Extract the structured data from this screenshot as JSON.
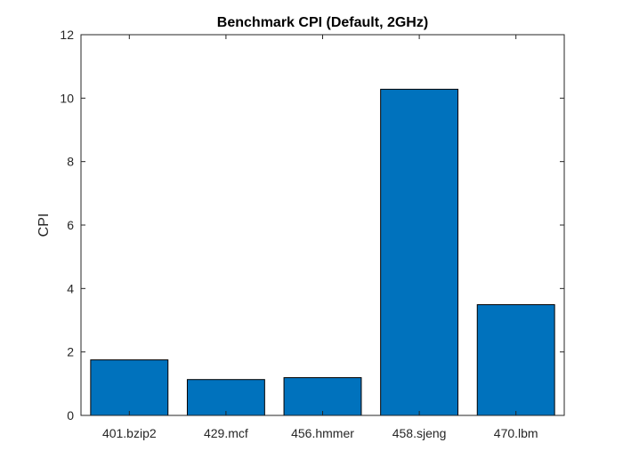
{
  "chart_data": {
    "type": "bar",
    "title": "Benchmark CPI (Default, 2GHz)",
    "xlabel": "",
    "ylabel": "CPI",
    "categories": [
      "401.bzip2",
      "429.mcf",
      "456.hmmer",
      "458.sjeng",
      "470.lbm"
    ],
    "values": [
      1.75,
      1.13,
      1.19,
      10.28,
      3.49
    ],
    "ylim": [
      0,
      12
    ],
    "yticks": [
      0,
      2,
      4,
      6,
      8,
      10,
      12
    ],
    "grid": false,
    "legend": "none",
    "bar_color": "#0072BD",
    "edge_color": "#000000"
  }
}
